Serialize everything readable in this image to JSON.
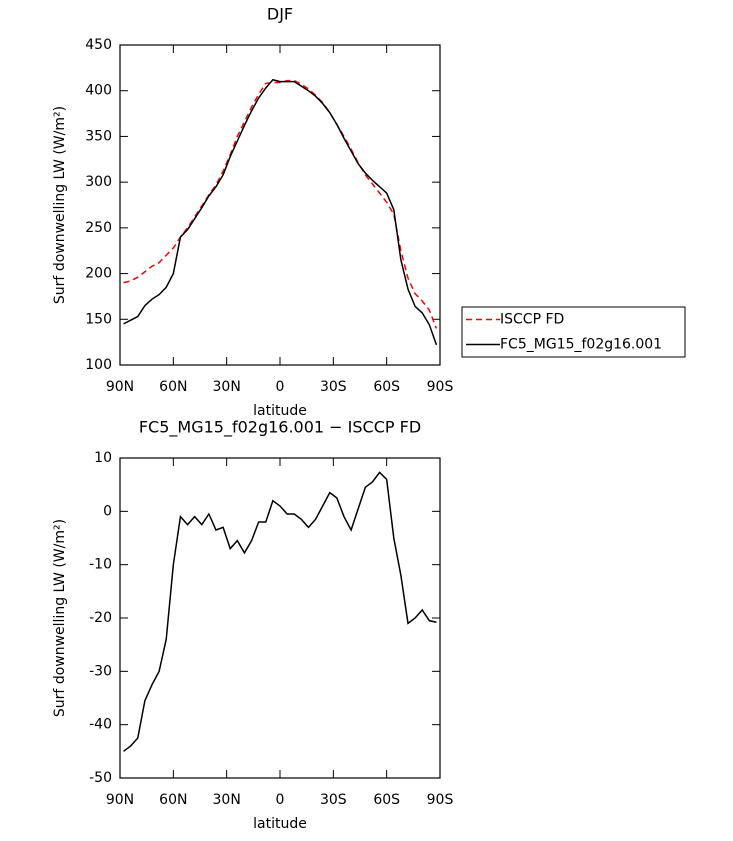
{
  "chart_data": [
    {
      "type": "line",
      "title": "DJF",
      "xlabel": "latitude",
      "ylabel": "Surf downwelling LW (W/m²)",
      "x": [
        88,
        84,
        80,
        76,
        72,
        68,
        64,
        60,
        56,
        52,
        48,
        44,
        40,
        36,
        32,
        28,
        24,
        20,
        16,
        12,
        8,
        4,
        0,
        -4,
        -8,
        -12,
        -16,
        -20,
        -24,
        -28,
        -32,
        -36,
        -40,
        -44,
        -48,
        -52,
        -56,
        -60,
        -64,
        -68,
        -72,
        -76,
        -80,
        -84,
        -88
      ],
      "series": [
        {
          "name": "ISCCP FD",
          "color": "#ff0000",
          "dashed": true,
          "values": [
            190,
            192,
            196,
            202,
            208,
            212,
            220,
            228,
            240,
            250,
            262,
            274,
            286,
            297,
            312,
            330,
            350,
            366,
            382,
            396,
            408,
            409,
            409,
            411,
            411,
            407,
            402,
            395,
            387,
            376,
            363,
            350,
            336,
            321,
            308,
            298,
            288,
            278,
            265,
            225,
            195,
            178,
            170,
            160,
            140
          ]
        },
        {
          "name": "FC5_MG15_f02g16.001",
          "color": "#000000",
          "dashed": false,
          "values": [
            145,
            149,
            153,
            165,
            172,
            177,
            185,
            200,
            240,
            248,
            260,
            272,
            285,
            295,
            308,
            328,
            345,
            362,
            378,
            392,
            403,
            412,
            410,
            410,
            410,
            405,
            400,
            394,
            386,
            376,
            363,
            348,
            334,
            320,
            310,
            302,
            295,
            288,
            270,
            215,
            183,
            164,
            157,
            144,
            122
          ]
        }
      ],
      "xlim": [
        90,
        -90
      ],
      "xticks": [
        {
          "value": 90,
          "label": "90N"
        },
        {
          "value": 60,
          "label": "60N"
        },
        {
          "value": 30,
          "label": "30N"
        },
        0,
        {
          "value": -30,
          "label": "30S"
        },
        {
          "value": -60,
          "label": "60S"
        },
        {
          "value": -90,
          "label": "90S"
        }
      ],
      "ylim": [
        100,
        450
      ],
      "yticks": [
        100,
        150,
        200,
        250,
        300,
        350,
        400,
        450
      ],
      "legend": "right"
    },
    {
      "type": "line",
      "title": "FC5_MG15_f02g16.001 − ISCCP FD",
      "xlabel": "latitude",
      "ylabel": "Surf downwelling LW (W/m²)",
      "x": [
        88,
        84,
        80,
        76,
        72,
        68,
        64,
        60,
        56,
        52,
        48,
        44,
        40,
        36,
        32,
        28,
        24,
        20,
        16,
        12,
        8,
        4,
        0,
        -4,
        -8,
        -12,
        -16,
        -20,
        -24,
        -28,
        -32,
        -36,
        -40,
        -44,
        -48,
        -52,
        -56,
        -60,
        -64,
        -68,
        -72,
        -76,
        -80,
        -84,
        -88
      ],
      "color": "#000000",
      "values": [
        -45,
        -44,
        -42.5,
        -35.5,
        -32.5,
        -30,
        -24,
        -10,
        -1,
        -2.5,
        -1,
        -2.5,
        -0.5,
        -3.5,
        -3,
        -7,
        -5.5,
        -7.8,
        -5.5,
        -2,
        -2,
        2,
        1,
        -0.5,
        -0.5,
        -1.5,
        -3,
        -1.5,
        1,
        3.5,
        2.5,
        -1,
        -3.5,
        0.5,
        4.5,
        5.5,
        7.3,
        6,
        -5,
        -12,
        -21,
        -20,
        -18.5,
        -20.5,
        -20.8
      ],
      "xlim": [
        90,
        -90
      ],
      "xticks": [
        {
          "value": 90,
          "label": "90N"
        },
        {
          "value": 60,
          "label": "60N"
        },
        {
          "value": 30,
          "label": "30N"
        },
        0,
        {
          "value": -30,
          "label": "30S"
        },
        {
          "value": -60,
          "label": "60S"
        },
        {
          "value": -90,
          "label": "90S"
        }
      ],
      "ylim": [
        -50,
        10
      ],
      "yticks": [
        -50,
        -40,
        -30,
        -20,
        -10,
        0,
        10
      ]
    }
  ]
}
